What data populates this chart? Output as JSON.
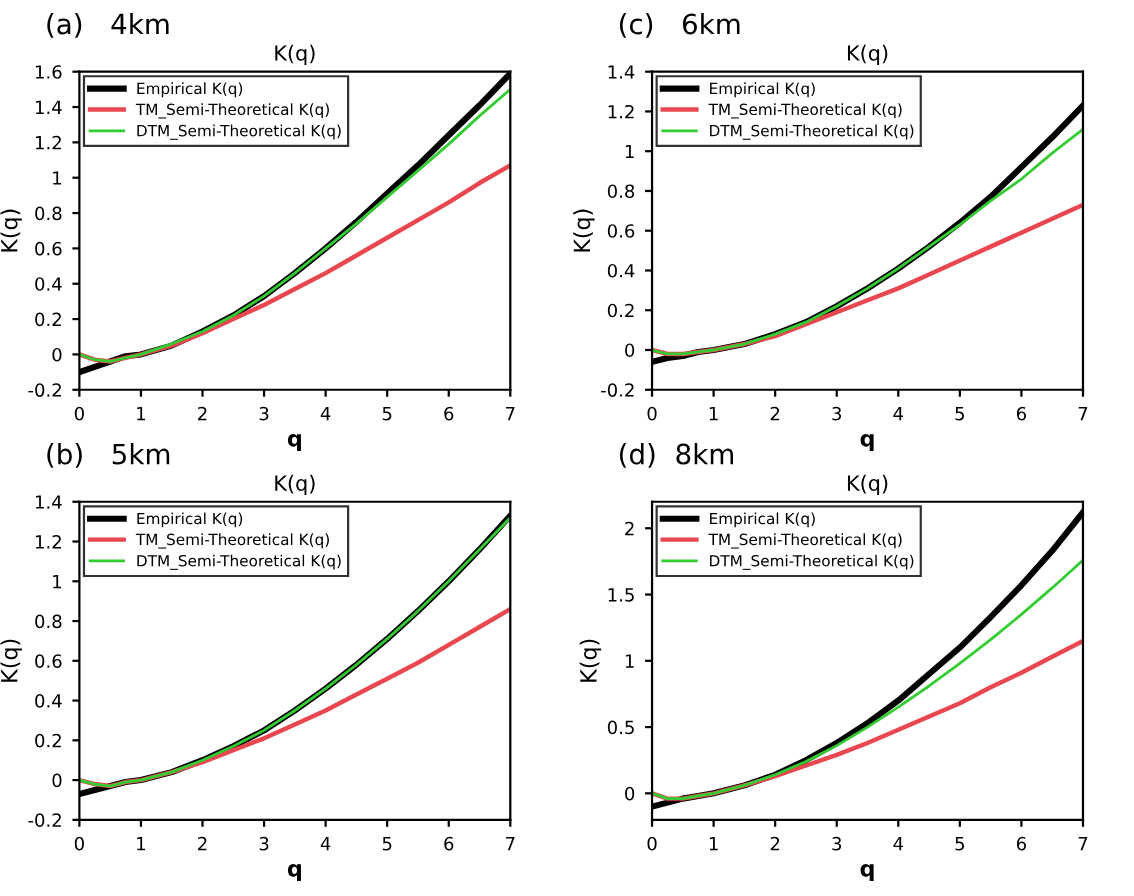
{
  "chart_data": [
    {
      "type": "line",
      "title": "K(q)",
      "xlabel": "q",
      "ylabel": "K(q)",
      "annotations": [
        "(a)   4km"
      ],
      "x": [
        0,
        0.25,
        0.5,
        0.75,
        1,
        1.5,
        2,
        2.5,
        3,
        3.5,
        4,
        4.5,
        5,
        5.5,
        6,
        6.5,
        7
      ],
      "xlim": [
        0,
        7
      ],
      "xticks": [
        0,
        1,
        2,
        3,
        4,
        5,
        6,
        7
      ],
      "ylim": [
        -0.2,
        1.6
      ],
      "yticks": [
        -0.2,
        0,
        0.2,
        0.4,
        0.6,
        0.8,
        1,
        1.2,
        1.4,
        1.6
      ],
      "grid": false,
      "legend": "top left",
      "series": [
        {
          "name": "Empirical K(q)",
          "color": "#000000",
          "values": [
            -0.1,
            -0.07,
            -0.04,
            -0.01,
            0,
            0.05,
            0.13,
            0.22,
            0.33,
            0.46,
            0.6,
            0.75,
            0.91,
            1.07,
            1.24,
            1.41,
            1.59
          ]
        },
        {
          "name": "TM_Semi-Theoretical K(q)",
          "color": "#e8474f",
          "values": [
            0,
            -0.03,
            -0.04,
            -0.02,
            0,
            0.05,
            0.12,
            0.2,
            0.28,
            0.37,
            0.46,
            0.56,
            0.66,
            0.76,
            0.86,
            0.97,
            1.07
          ]
        },
        {
          "name": "DTM_Semi-Theoretical K(q)",
          "color": "#33cc33",
          "values": [
            0,
            -0.03,
            -0.04,
            -0.02,
            0,
            0.06,
            0.13,
            0.22,
            0.33,
            0.46,
            0.6,
            0.74,
            0.89,
            1.04,
            1.19,
            1.35,
            1.5
          ]
        }
      ]
    },
    {
      "type": "line",
      "title": "K(q)",
      "xlabel": "q",
      "ylabel": "K(q)",
      "annotations": [
        "(c)   6km"
      ],
      "x": [
        0,
        0.25,
        0.5,
        0.75,
        1,
        1.5,
        2,
        2.5,
        3,
        3.5,
        4,
        4.5,
        5,
        5.5,
        6,
        6.5,
        7
      ],
      "xlim": [
        0,
        7
      ],
      "xticks": [
        0,
        1,
        2,
        3,
        4,
        5,
        6,
        7
      ],
      "ylim": [
        -0.2,
        1.4
      ],
      "yticks": [
        -0.2,
        0,
        0.2,
        0.4,
        0.6,
        0.8,
        1,
        1.2,
        1.4
      ],
      "grid": false,
      "legend": "top left",
      "series": [
        {
          "name": "Empirical K(q)",
          "color": "#000000",
          "values": [
            -0.06,
            -0.04,
            -0.03,
            -0.01,
            0,
            0.03,
            0.08,
            0.14,
            0.22,
            0.31,
            0.41,
            0.52,
            0.64,
            0.77,
            0.92,
            1.07,
            1.23
          ]
        },
        {
          "name": "TM_Semi-Theoretical K(q)",
          "color": "#e8474f",
          "values": [
            0,
            -0.02,
            -0.02,
            -0.01,
            0,
            0.03,
            0.07,
            0.13,
            0.19,
            0.25,
            0.31,
            0.38,
            0.45,
            0.52,
            0.59,
            0.66,
            0.73
          ]
        },
        {
          "name": "DTM_Semi-Theoretical K(q)",
          "color": "#33cc33",
          "values": [
            0,
            -0.02,
            -0.02,
            -0.01,
            0,
            0.03,
            0.08,
            0.14,
            0.22,
            0.31,
            0.41,
            0.52,
            0.63,
            0.75,
            0.86,
            0.99,
            1.11
          ]
        }
      ]
    },
    {
      "type": "line",
      "title": "K(q)",
      "xlabel": "q",
      "ylabel": "K(q)",
      "annotations": [
        "(b)   5km"
      ],
      "x": [
        0,
        0.25,
        0.5,
        0.75,
        1,
        1.5,
        2,
        2.5,
        3,
        3.5,
        4,
        4.5,
        5,
        5.5,
        6,
        6.5,
        7
      ],
      "xlim": [
        0,
        7
      ],
      "xticks": [
        0,
        1,
        2,
        3,
        4,
        5,
        6,
        7
      ],
      "ylim": [
        -0.2,
        1.4
      ],
      "yticks": [
        -0.2,
        0,
        0.2,
        0.4,
        0.6,
        0.8,
        1,
        1.2,
        1.4
      ],
      "grid": false,
      "legend": "top left",
      "series": [
        {
          "name": "Empirical K(q)",
          "color": "#000000",
          "values": [
            -0.07,
            -0.05,
            -0.03,
            -0.01,
            0,
            0.04,
            0.1,
            0.17,
            0.25,
            0.35,
            0.46,
            0.58,
            0.71,
            0.85,
            1.0,
            1.16,
            1.33
          ]
        },
        {
          "name": "TM_Semi-Theoretical K(q)",
          "color": "#e8474f",
          "values": [
            0,
            -0.02,
            -0.03,
            -0.01,
            0,
            0.04,
            0.09,
            0.15,
            0.21,
            0.28,
            0.35,
            0.43,
            0.51,
            0.59,
            0.68,
            0.77,
            0.86
          ]
        },
        {
          "name": "DTM_Semi-Theoretical K(q)",
          "color": "#33cc33",
          "values": [
            0,
            -0.02,
            -0.03,
            -0.01,
            0,
            0.04,
            0.1,
            0.17,
            0.25,
            0.35,
            0.46,
            0.58,
            0.71,
            0.85,
            1.0,
            1.16,
            1.32
          ]
        }
      ]
    },
    {
      "type": "line",
      "title": "K(q)",
      "xlabel": "q",
      "ylabel": "K(q)",
      "annotations": [
        "(d)  8km"
      ],
      "x": [
        0,
        0.25,
        0.5,
        0.75,
        1,
        1.5,
        2,
        2.5,
        3,
        3.5,
        4,
        4.5,
        5,
        5.5,
        6,
        6.5,
        7
      ],
      "xlim": [
        0,
        7
      ],
      "xticks": [
        0,
        1,
        2,
        3,
        4,
        5,
        6,
        7
      ],
      "ylim": [
        -0.2,
        2.2
      ],
      "yticks": [
        0,
        0.5,
        1,
        1.5,
        2
      ],
      "grid": false,
      "legend": "top left",
      "series": [
        {
          "name": "Empirical K(q)",
          "color": "#000000",
          "values": [
            -0.1,
            -0.07,
            -0.04,
            -0.02,
            0,
            0.06,
            0.14,
            0.25,
            0.38,
            0.53,
            0.7,
            0.9,
            1.1,
            1.33,
            1.57,
            1.83,
            2.12
          ]
        },
        {
          "name": "TM_Semi-Theoretical K(q)",
          "color": "#e8474f",
          "values": [
            0,
            -0.04,
            -0.04,
            -0.02,
            0,
            0.06,
            0.13,
            0.21,
            0.29,
            0.38,
            0.48,
            0.58,
            0.68,
            0.8,
            0.91,
            1.03,
            1.15
          ]
        },
        {
          "name": "DTM_Semi-Theoretical K(q)",
          "color": "#33cc33",
          "values": [
            0,
            -0.04,
            -0.04,
            -0.02,
            0,
            0.06,
            0.14,
            0.24,
            0.36,
            0.5,
            0.65,
            0.81,
            0.98,
            1.16,
            1.35,
            1.55,
            1.76
          ]
        }
      ]
    }
  ]
}
